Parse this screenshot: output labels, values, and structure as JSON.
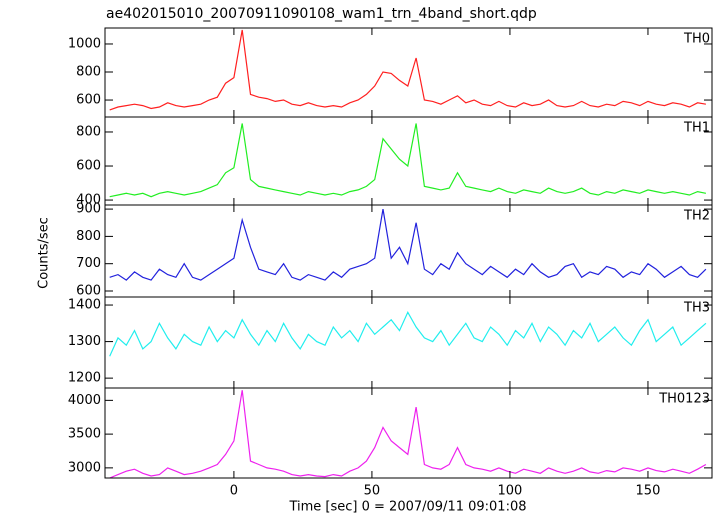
{
  "title": "ae402015010_20070911090108_wam1_trn_4band_short.qdp",
  "y_label": "Counts/sec",
  "x_label": "Time [sec] 0 = 2007/09/11 09:01:08",
  "chart_data": [
    {
      "type": "line",
      "label": "TH0",
      "color": "#ff2020",
      "x": [
        -45,
        -42,
        -39,
        -36,
        -33,
        -30,
        -27,
        -24,
        -21,
        -18,
        -15,
        -12,
        -9,
        -6,
        -3,
        0,
        3,
        6,
        9,
        12,
        15,
        18,
        21,
        24,
        27,
        30,
        33,
        36,
        39,
        42,
        45,
        48,
        51,
        54,
        57,
        60,
        63,
        66,
        69,
        72,
        75,
        78,
        81,
        84,
        87,
        90,
        93,
        96,
        99,
        102,
        105,
        108,
        111,
        114,
        117,
        120,
        123,
        126,
        129,
        132,
        135,
        138,
        141,
        144,
        147,
        150,
        153,
        156,
        159,
        162,
        165,
        168,
        171
      ],
      "values": [
        530,
        550,
        560,
        570,
        560,
        540,
        550,
        580,
        560,
        550,
        560,
        570,
        600,
        620,
        720,
        760,
        1100,
        640,
        620,
        610,
        590,
        600,
        570,
        560,
        580,
        560,
        550,
        560,
        550,
        580,
        600,
        640,
        700,
        800,
        790,
        740,
        700,
        900,
        600,
        590,
        570,
        600,
        630,
        580,
        600,
        570,
        560,
        590,
        560,
        550,
        580,
        560,
        570,
        600,
        560,
        550,
        560,
        590,
        560,
        550,
        570,
        560,
        590,
        580,
        560,
        590,
        570,
        560,
        580,
        570,
        550,
        580,
        570
      ],
      "xlim": [
        -46.7,
        173.2
      ],
      "xticks": [
        0,
        50,
        100,
        150
      ],
      "ylim": [
        479,
        1114
      ],
      "yticks": [
        600,
        800,
        1000
      ]
    },
    {
      "type": "line",
      "label": "TH1",
      "color": "#22ee22",
      "x": [
        -45,
        -42,
        -39,
        -36,
        -33,
        -30,
        -27,
        -24,
        -21,
        -18,
        -15,
        -12,
        -9,
        -6,
        -3,
        0,
        3,
        6,
        9,
        12,
        15,
        18,
        21,
        24,
        27,
        30,
        33,
        36,
        39,
        42,
        45,
        48,
        51,
        54,
        57,
        60,
        63,
        66,
        69,
        72,
        75,
        78,
        81,
        84,
        87,
        90,
        93,
        96,
        99,
        102,
        105,
        108,
        111,
        114,
        117,
        120,
        123,
        126,
        129,
        132,
        135,
        138,
        141,
        144,
        147,
        150,
        153,
        156,
        159,
        162,
        165,
        168,
        171
      ],
      "values": [
        420,
        430,
        440,
        430,
        440,
        420,
        440,
        450,
        440,
        430,
        440,
        450,
        470,
        490,
        560,
        590,
        850,
        520,
        480,
        470,
        460,
        450,
        440,
        430,
        450,
        440,
        430,
        440,
        430,
        450,
        460,
        480,
        520,
        760,
        700,
        640,
        600,
        850,
        480,
        470,
        460,
        470,
        560,
        480,
        470,
        460,
        450,
        470,
        450,
        440,
        460,
        450,
        440,
        470,
        450,
        440,
        450,
        470,
        440,
        430,
        450,
        440,
        460,
        450,
        440,
        460,
        450,
        440,
        450,
        440,
        430,
        450,
        440
      ],
      "xlim": [
        -46.7,
        173.2
      ],
      "xticks": [
        0,
        50,
        100,
        150
      ],
      "ylim": [
        371,
        888
      ],
      "yticks": [
        400,
        600,
        800
      ]
    },
    {
      "type": "line",
      "label": "TH2",
      "color": "#2222dd",
      "x": [
        -45,
        -42,
        -39,
        -36,
        -33,
        -30,
        -27,
        -24,
        -21,
        -18,
        -15,
        -12,
        -9,
        -6,
        -3,
        0,
        3,
        6,
        9,
        12,
        15,
        18,
        21,
        24,
        27,
        30,
        33,
        36,
        39,
        42,
        45,
        48,
        51,
        54,
        57,
        60,
        63,
        66,
        69,
        72,
        75,
        78,
        81,
        84,
        87,
        90,
        93,
        96,
        99,
        102,
        105,
        108,
        111,
        114,
        117,
        120,
        123,
        126,
        129,
        132,
        135,
        138,
        141,
        144,
        147,
        150,
        153,
        156,
        159,
        162,
        165,
        168,
        171
      ],
      "values": [
        650,
        660,
        640,
        670,
        650,
        640,
        680,
        660,
        650,
        700,
        650,
        640,
        660,
        680,
        700,
        720,
        860,
        760,
        680,
        670,
        660,
        700,
        650,
        640,
        660,
        650,
        640,
        670,
        650,
        680,
        690,
        700,
        720,
        900,
        720,
        760,
        700,
        850,
        680,
        660,
        700,
        680,
        740,
        700,
        680,
        660,
        690,
        670,
        650,
        680,
        660,
        700,
        670,
        650,
        660,
        690,
        700,
        650,
        670,
        660,
        690,
        680,
        650,
        670,
        660,
        700,
        680,
        650,
        670,
        690,
        660,
        650,
        680
      ],
      "xlim": [
        -46.7,
        173.2
      ],
      "xticks": [
        0,
        50,
        100,
        150
      ],
      "ylim": [
        578,
        915
      ],
      "yticks": [
        600,
        700,
        800,
        900
      ]
    },
    {
      "type": "line",
      "label": "TH3",
      "color": "#22eeee",
      "x": [
        -45,
        -42,
        -39,
        -36,
        -33,
        -30,
        -27,
        -24,
        -21,
        -18,
        -15,
        -12,
        -9,
        -6,
        -3,
        0,
        3,
        6,
        9,
        12,
        15,
        18,
        21,
        24,
        27,
        30,
        33,
        36,
        39,
        42,
        45,
        48,
        51,
        54,
        57,
        60,
        63,
        66,
        69,
        72,
        75,
        78,
        81,
        84,
        87,
        90,
        93,
        96,
        99,
        102,
        105,
        108,
        111,
        114,
        117,
        120,
        123,
        126,
        129,
        132,
        135,
        138,
        141,
        144,
        147,
        150,
        153,
        156,
        159,
        162,
        165,
        168,
        171
      ],
      "values": [
        1260,
        1310,
        1290,
        1330,
        1280,
        1300,
        1350,
        1310,
        1280,
        1320,
        1300,
        1290,
        1340,
        1300,
        1330,
        1310,
        1360,
        1320,
        1290,
        1330,
        1300,
        1350,
        1310,
        1280,
        1320,
        1300,
        1290,
        1340,
        1310,
        1330,
        1300,
        1350,
        1320,
        1340,
        1360,
        1330,
        1380,
        1340,
        1310,
        1300,
        1330,
        1290,
        1320,
        1350,
        1310,
        1300,
        1340,
        1320,
        1290,
        1330,
        1310,
        1350,
        1300,
        1340,
        1320,
        1290,
        1330,
        1310,
        1350,
        1300,
        1320,
        1340,
        1310,
        1290,
        1330,
        1360,
        1300,
        1320,
        1340,
        1290,
        1310,
        1330,
        1350
      ],
      "xlim": [
        -46.7,
        173.2
      ],
      "xticks": [
        0,
        50,
        100,
        150
      ],
      "ylim": [
        1173,
        1422
      ],
      "yticks": [
        1200,
        1300,
        1400
      ]
    },
    {
      "type": "line",
      "label": "TH0123",
      "color": "#ee22ee",
      "x": [
        -45,
        -42,
        -39,
        -36,
        -33,
        -30,
        -27,
        -24,
        -21,
        -18,
        -15,
        -12,
        -9,
        -6,
        -3,
        0,
        3,
        6,
        9,
        12,
        15,
        18,
        21,
        24,
        27,
        30,
        33,
        36,
        39,
        42,
        45,
        48,
        51,
        54,
        57,
        60,
        63,
        66,
        69,
        72,
        75,
        78,
        81,
        84,
        87,
        90,
        93,
        96,
        99,
        102,
        105,
        108,
        111,
        114,
        117,
        120,
        123,
        126,
        129,
        132,
        135,
        138,
        141,
        144,
        147,
        150,
        153,
        156,
        159,
        162,
        165,
        168,
        171
      ],
      "values": [
        2850,
        2900,
        2950,
        2980,
        2920,
        2880,
        2900,
        3000,
        2950,
        2900,
        2920,
        2950,
        3000,
        3050,
        3200,
        3400,
        4150,
        3100,
        3050,
        3000,
        2980,
        2950,
        2900,
        2880,
        2900,
        2880,
        2870,
        2900,
        2880,
        2950,
        3000,
        3100,
        3300,
        3600,
        3400,
        3300,
        3200,
        3900,
        3050,
        3000,
        2980,
        3050,
        3300,
        3050,
        3000,
        2980,
        2950,
        3000,
        2950,
        2920,
        2980,
        2950,
        2920,
        3000,
        2950,
        2920,
        2950,
        3000,
        2940,
        2920,
        2960,
        2940,
        3000,
        2980,
        2950,
        3000,
        2960,
        2940,
        2980,
        2950,
        2920,
        2980,
        3050
      ],
      "xlim": [
        -46.7,
        173.2
      ],
      "xticks": [
        0,
        50,
        100,
        150
      ],
      "ylim": [
        2850,
        4183
      ],
      "yticks": [
        3000,
        3500,
        4000
      ]
    }
  ]
}
